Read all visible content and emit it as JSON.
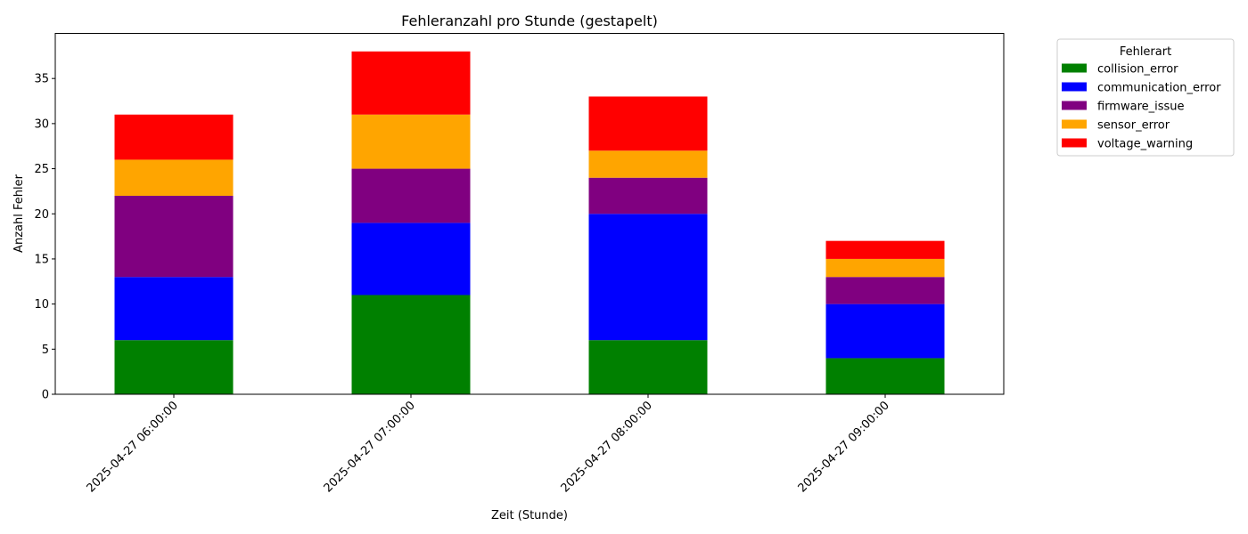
{
  "chart_data": {
    "type": "bar",
    "stacked": true,
    "title": "Fehleranzahl pro Stunde (gestapelt)",
    "xlabel": "Zeit (Stunde)",
    "ylabel": "Anzahl Fehler",
    "categories": [
      "2025-04-27 06:00:00",
      "2025-04-27 07:00:00",
      "2025-04-27 08:00:00",
      "2025-04-27 09:00:00"
    ],
    "ylim": [
      0,
      40
    ],
    "yticks": [
      0,
      5,
      10,
      15,
      20,
      25,
      30,
      35
    ],
    "grid": false,
    "legend_title": "Fehlerart",
    "legend_position": "outside-top-right",
    "series": [
      {
        "name": "collision_error",
        "color": "#008000",
        "values": [
          6,
          11,
          6,
          4
        ]
      },
      {
        "name": "communication_error",
        "color": "#0000ff",
        "values": [
          7,
          8,
          14,
          6
        ]
      },
      {
        "name": "firmware_issue",
        "color": "#800080",
        "values": [
          9,
          6,
          4,
          3
        ]
      },
      {
        "name": "sensor_error",
        "color": "#ffa500",
        "values": [
          4,
          6,
          3,
          2
        ]
      },
      {
        "name": "voltage_warning",
        "color": "#ff0000",
        "values": [
          5,
          7,
          6,
          2
        ]
      }
    ]
  }
}
